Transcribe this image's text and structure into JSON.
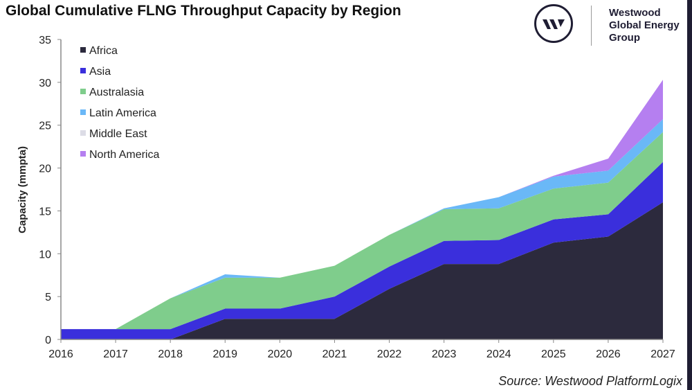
{
  "header": {
    "title": "Global Cumulative FLNG Throughput Capacity by Region"
  },
  "logo": {
    "lines": [
      "Westwood",
      "Global Energy",
      "Group"
    ]
  },
  "source": "Source: Westwood PlatformLogix",
  "chart_data": {
    "type": "area",
    "stacked": true,
    "title": "Global Cumulative FLNG Throughput Capacity by Region",
    "xlabel": "",
    "ylabel": "Capacity (mmpta)",
    "x": [
      2016,
      2017,
      2018,
      2019,
      2020,
      2021,
      2022,
      2023,
      2024,
      2025,
      2026,
      2027
    ],
    "ylim": [
      0,
      35
    ],
    "yticks": [
      0,
      5,
      10,
      15,
      20,
      25,
      30,
      35
    ],
    "grid": false,
    "legend_position": "top-left",
    "series": [
      {
        "name": "Africa",
        "color": "#2c2a3d",
        "values": [
          0,
          0,
          0,
          2.4,
          2.4,
          2.4,
          5.9,
          8.8,
          8.8,
          11.3,
          12.0,
          16.0
        ]
      },
      {
        "name": "Asia",
        "color": "#3a2fdc",
        "values": [
          1.2,
          1.2,
          1.2,
          1.2,
          1.2,
          2.6,
          2.6,
          2.7,
          2.8,
          2.7,
          2.6,
          4.7
        ]
      },
      {
        "name": "Australasia",
        "color": "#7fcd8c",
        "values": [
          0,
          0,
          3.6,
          3.6,
          3.6,
          3.6,
          3.7,
          3.7,
          3.7,
          3.6,
          3.7,
          3.5
        ]
      },
      {
        "name": "Latin America",
        "color": "#6ab8f7",
        "values": [
          0,
          0,
          0,
          0.4,
          0,
          0,
          0,
          0.1,
          1.3,
          1.4,
          1.4,
          1.5
        ]
      },
      {
        "name": "Middle East",
        "color": "#dcdce6",
        "values": [
          0,
          0,
          0,
          0,
          0,
          0,
          0,
          0,
          0,
          0,
          0,
          0
        ]
      },
      {
        "name": "North America",
        "color": "#b57ff0",
        "values": [
          0,
          0,
          0,
          0,
          0,
          0,
          0,
          0,
          0,
          0.1,
          1.4,
          4.6
        ]
      }
    ]
  }
}
